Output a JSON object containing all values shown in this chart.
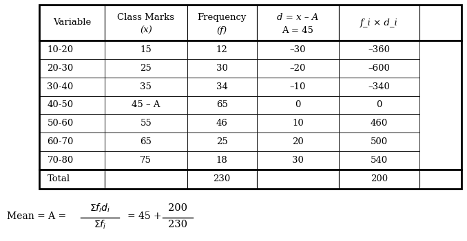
{
  "col_headers_line1": [
    "Variable",
    "Class Marks",
    "Frequency",
    "d = x – A",
    "f_i × d_i"
  ],
  "col_headers_line2": [
    "",
    "(x)",
    "(f)",
    "A = 45",
    ""
  ],
  "col_headers_line1_italic": [
    false,
    false,
    false,
    true,
    true
  ],
  "col_headers_line2_italic": [
    false,
    true,
    true,
    false,
    false
  ],
  "rows": [
    [
      "10-20",
      "15",
      "12",
      "–30",
      "–360"
    ],
    [
      "20-30",
      "25",
      "30",
      "–20",
      "–600"
    ],
    [
      "30-40",
      "35",
      "34",
      "–10",
      "–340"
    ],
    [
      "40-50",
      "45 – A",
      "65",
      "0",
      "0"
    ],
    [
      "50-60",
      "55",
      "46",
      "10",
      "460"
    ],
    [
      "60-70",
      "65",
      "25",
      "20",
      "500"
    ],
    [
      "70-80",
      "75",
      "18",
      "30",
      "540"
    ]
  ],
  "total_row": [
    "Total",
    "",
    "230",
    "",
    "200"
  ],
  "bg_color": "#ffffff",
  "figsize": [
    6.78,
    3.51
  ],
  "dpi": 100
}
